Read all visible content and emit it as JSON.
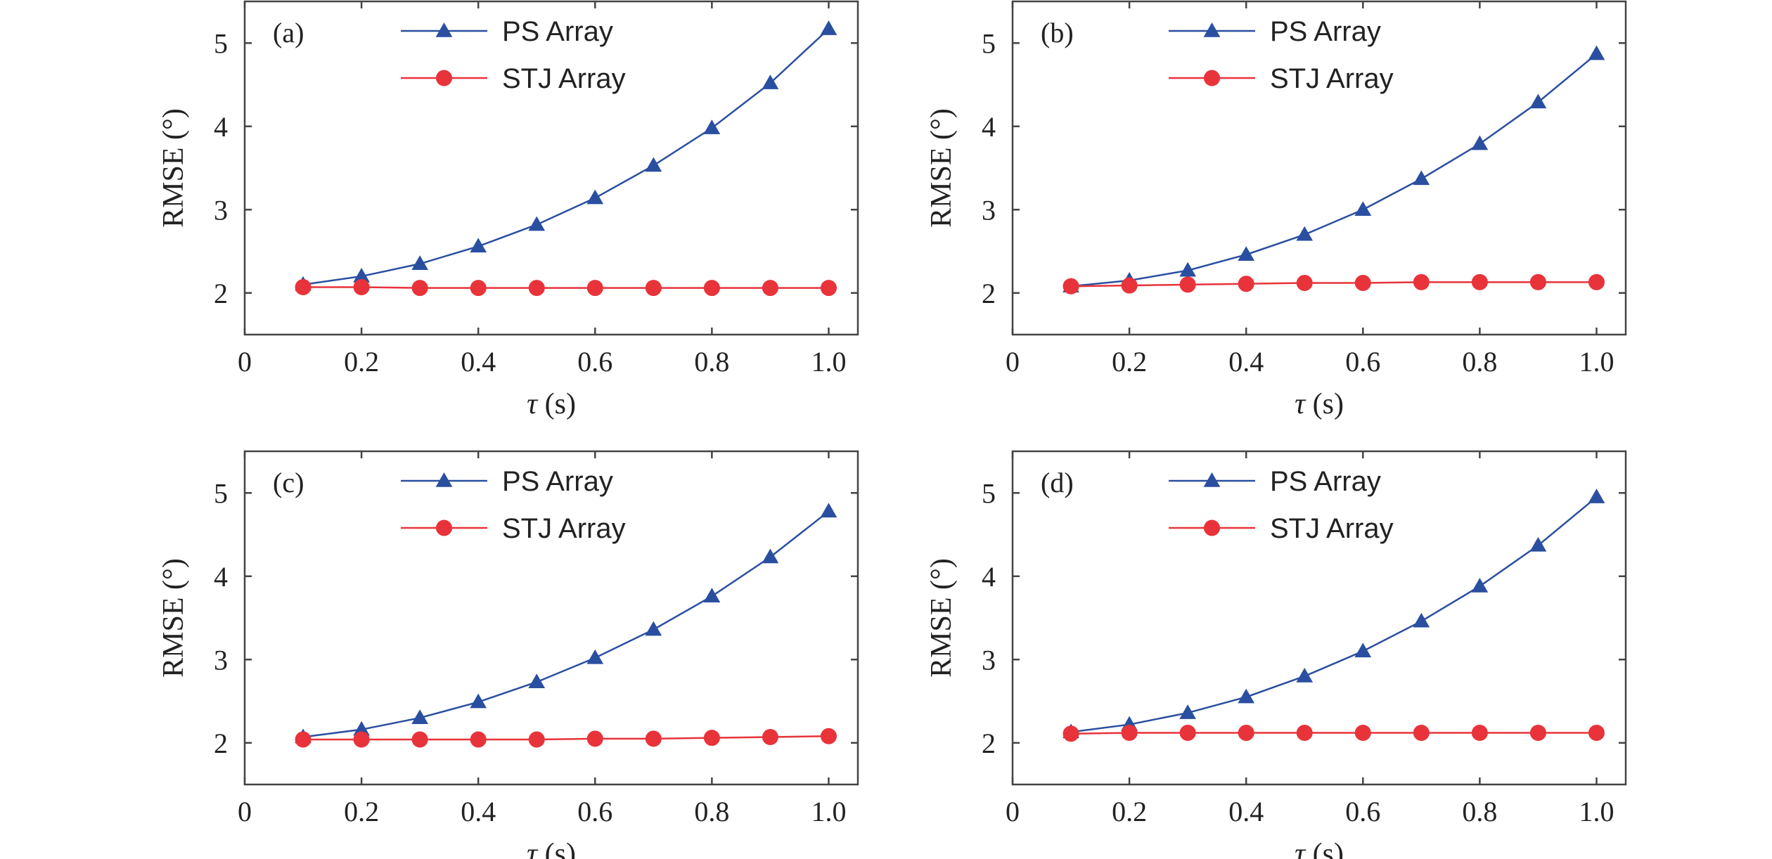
{
  "chart_data": [
    {
      "type": "line",
      "panel_label": "(a)",
      "xlabel_symbol": "τ",
      "xlabel_unit": " (s)",
      "ylabel": "RMSE (°)",
      "xlim": [
        0,
        1.05
      ],
      "ylim": [
        1.5,
        5.5
      ],
      "xticks": [
        "0",
        "0.2",
        "0.4",
        "0.6",
        "0.8",
        "1.0"
      ],
      "yticks": [
        "2",
        "3",
        "4",
        "5"
      ],
      "x": [
        0.1,
        0.2,
        0.3,
        0.4,
        0.5,
        0.6,
        0.7,
        0.8,
        0.9,
        1.0
      ],
      "legend": "top-center",
      "grid": false,
      "series": [
        {
          "name": "PS Array",
          "color": "#2a4fa0",
          "marker": "triangle",
          "values": [
            2.1,
            2.2,
            2.35,
            2.56,
            2.82,
            3.14,
            3.53,
            3.98,
            4.52,
            5.17
          ]
        },
        {
          "name": "STJ Array",
          "color": "#e8333a",
          "marker": "circle",
          "values": [
            2.07,
            2.07,
            2.06,
            2.06,
            2.06,
            2.06,
            2.06,
            2.06,
            2.06,
            2.06
          ]
        }
      ]
    },
    {
      "type": "line",
      "panel_label": "(b)",
      "xlabel_symbol": "τ",
      "xlabel_unit": " (s)",
      "ylabel": "RMSE (°)",
      "xlim": [
        0,
        1.05
      ],
      "ylim": [
        1.5,
        5.5
      ],
      "xticks": [
        "0",
        "0.2",
        "0.4",
        "0.6",
        "0.8",
        "1.0"
      ],
      "yticks": [
        "2",
        "3",
        "4",
        "5"
      ],
      "x": [
        0.1,
        0.2,
        0.3,
        0.4,
        0.5,
        0.6,
        0.7,
        0.8,
        0.9,
        1.0
      ],
      "legend": "top-center",
      "grid": false,
      "series": [
        {
          "name": "PS Array",
          "color": "#2a4fa0",
          "marker": "triangle",
          "values": [
            2.08,
            2.15,
            2.27,
            2.46,
            2.7,
            3.0,
            3.37,
            3.79,
            4.29,
            4.87
          ]
        },
        {
          "name": "STJ Array",
          "color": "#e8333a",
          "marker": "circle",
          "values": [
            2.08,
            2.09,
            2.1,
            2.11,
            2.12,
            2.12,
            2.13,
            2.13,
            2.13,
            2.13
          ]
        }
      ]
    },
    {
      "type": "line",
      "panel_label": "(c)",
      "xlabel_symbol": "τ",
      "xlabel_unit": " (s)",
      "ylabel": "RMSE (°)",
      "xlim": [
        0,
        1.05
      ],
      "ylim": [
        1.5,
        5.5
      ],
      "xticks": [
        "0",
        "0.2",
        "0.4",
        "0.6",
        "0.8",
        "1.0"
      ],
      "yticks": [
        "2",
        "3",
        "4",
        "5"
      ],
      "x": [
        0.1,
        0.2,
        0.3,
        0.4,
        0.5,
        0.6,
        0.7,
        0.8,
        0.9,
        1.0
      ],
      "legend": "top-center",
      "grid": false,
      "series": [
        {
          "name": "PS Array",
          "color": "#2a4fa0",
          "marker": "triangle",
          "values": [
            2.07,
            2.16,
            2.3,
            2.49,
            2.73,
            3.02,
            3.36,
            3.76,
            4.23,
            4.78
          ]
        },
        {
          "name": "STJ Array",
          "color": "#e8333a",
          "marker": "circle",
          "values": [
            2.04,
            2.04,
            2.04,
            2.04,
            2.04,
            2.05,
            2.05,
            2.06,
            2.07,
            2.08
          ]
        }
      ]
    },
    {
      "type": "line",
      "panel_label": "(d)",
      "xlabel_symbol": "τ",
      "xlabel_unit": " (s)",
      "ylabel": "RMSE (°)",
      "xlim": [
        0,
        1.05
      ],
      "ylim": [
        1.5,
        5.5
      ],
      "xticks": [
        "0",
        "0.2",
        "0.4",
        "0.6",
        "0.8",
        "1.0"
      ],
      "yticks": [
        "2",
        "3",
        "4",
        "5"
      ],
      "x": [
        0.1,
        0.2,
        0.3,
        0.4,
        0.5,
        0.6,
        0.7,
        0.8,
        0.9,
        1.0
      ],
      "legend": "top-center",
      "grid": false,
      "series": [
        {
          "name": "PS Array",
          "color": "#2a4fa0",
          "marker": "triangle",
          "values": [
            2.13,
            2.22,
            2.36,
            2.55,
            2.8,
            3.1,
            3.46,
            3.88,
            4.37,
            4.95
          ]
        },
        {
          "name": "STJ Array",
          "color": "#e8333a",
          "marker": "circle",
          "values": [
            2.11,
            2.12,
            2.12,
            2.12,
            2.12,
            2.12,
            2.12,
            2.12,
            2.12,
            2.12
          ]
        }
      ]
    }
  ]
}
